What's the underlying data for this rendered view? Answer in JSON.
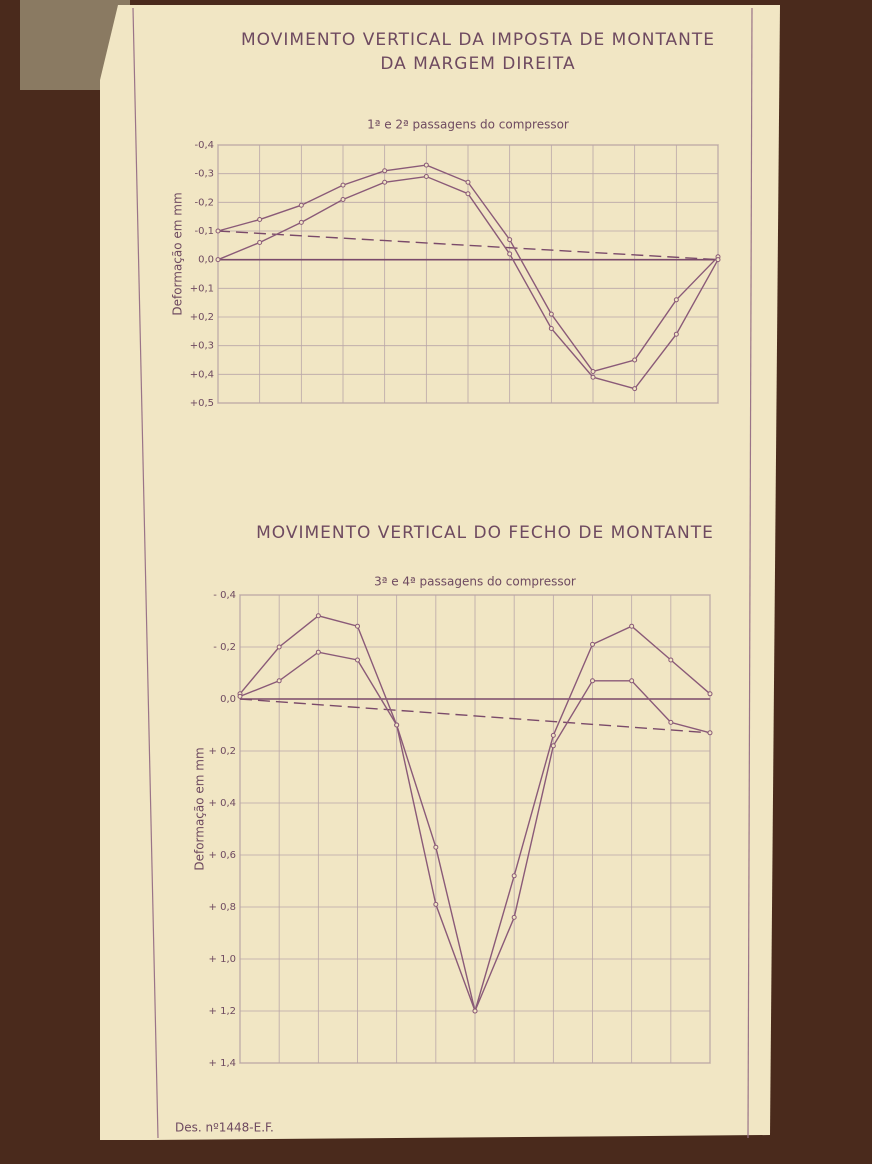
{
  "chart_data": [
    {
      "type": "line",
      "title": [
        "MOVIMENTO VERTICAL DA IMPOSTA DE MONTANTE",
        "DA MARGEM DIREITA"
      ],
      "subtitle": "1ª e 2ª passagens do compressor",
      "ylabel": "Deformação em mm",
      "categories": [
        null,
        null,
        null,
        null,
        null,
        null,
        null,
        null,
        null,
        null,
        null,
        null,
        null
      ],
      "series": [
        {
          "color": "#8a5a78",
          "values": [
            -0.1,
            -0.14,
            -0.19,
            -0.26,
            -0.31,
            -0.33,
            -0.27,
            -0.07,
            0.19,
            0.39,
            0.35,
            0.14,
            -0.01
          ]
        },
        {
          "color": "#8a5a78",
          "values": [
            0.0,
            -0.06,
            -0.13,
            -0.21,
            -0.27,
            -0.29,
            -0.23,
            -0.02,
            0.24,
            0.41,
            0.45,
            0.26,
            0.0
          ]
        }
      ],
      "reference_line": [
        -0.1,
        0.0
      ],
      "ylim": [
        -0.4,
        0.5
      ],
      "y_inverted": true,
      "yticks": [
        {
          "value": -0.4,
          "label": "-0,4"
        },
        {
          "value": -0.3,
          "label": "-0,3"
        },
        {
          "value": -0.2,
          "label": "-0,2"
        },
        {
          "value": -0.1,
          "label": "-0,1"
        },
        {
          "value": 0,
          "label": "0,0"
        },
        {
          "value": 0.1,
          "label": "+0,1"
        },
        {
          "value": 0.2,
          "label": "+0,2"
        },
        {
          "value": 0.3,
          "label": "+0,3"
        },
        {
          "value": 0.4,
          "label": "+0,4"
        },
        {
          "value": 0.5,
          "label": "+0,5"
        }
      ],
      "grid": true
    },
    {
      "type": "line",
      "title": "MOVIMENTO VERTICAL DO FECHO DE MONTANTE",
      "subtitle": "3ª e 4ª passagens do compressor",
      "ylabel": "Deformação em mm",
      "categories": [
        null,
        null,
        null,
        null,
        null,
        null,
        null,
        null,
        null,
        null,
        null,
        null,
        null
      ],
      "series": [
        {
          "color": "#8a5a78",
          "values": [
            -0.02,
            -0.2,
            -0.32,
            -0.28,
            0.1,
            0.57,
            1.2,
            0.68,
            0.14,
            -0.21,
            -0.28,
            -0.15,
            -0.02
          ]
        },
        {
          "color": "#8a5a78",
          "values": [
            -0.01,
            -0.07,
            -0.18,
            -0.15,
            0.1,
            0.79,
            1.2,
            0.84,
            0.18,
            -0.07,
            -0.07,
            0.09,
            0.13
          ]
        }
      ],
      "reference_line": [
        0.0,
        0.13
      ],
      "ylim": [
        -0.4,
        1.4
      ],
      "y_inverted": true,
      "yticks": [
        {
          "value": -0.4,
          "label": "- 0,4"
        },
        {
          "value": -0.2,
          "label": "- 0,2"
        },
        {
          "value": 0,
          "label": "0,0"
        },
        {
          "value": 0.2,
          "label": "+ 0,2"
        },
        {
          "value": 0.4,
          "label": "+ 0,4"
        },
        {
          "value": 0.6,
          "label": "+ 0,6"
        },
        {
          "value": 0.8,
          "label": "+ 0,8"
        },
        {
          "value": 1.0,
          "label": "+ 1,0"
        },
        {
          "value": 1.2,
          "label": "+ 1,2"
        },
        {
          "value": 1.4,
          "label": "+ 1,4"
        }
      ],
      "grid": true
    }
  ],
  "footer": "Des. nº1448-E.F."
}
